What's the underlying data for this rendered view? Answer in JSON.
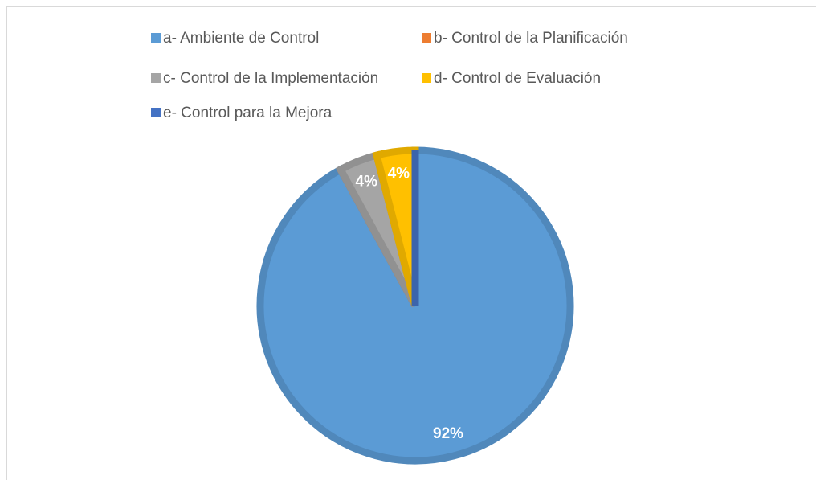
{
  "chart_data": {
    "type": "pie",
    "categories": [
      "a- Ambiente de Control",
      "b- Control de la Planificación",
      "c- Control de la Implementación",
      "d- Control de Evaluación",
      "e- Control para la Mejora"
    ],
    "values": [
      92,
      0,
      4,
      4,
      0
    ],
    "value_labels": [
      "92%",
      null,
      "4%",
      "4%",
      null
    ],
    "colors": [
      "#5b9bd5",
      "#ed7d31",
      "#a5a5a5",
      "#ffc000",
      "#4472c4"
    ],
    "legend": "top"
  }
}
